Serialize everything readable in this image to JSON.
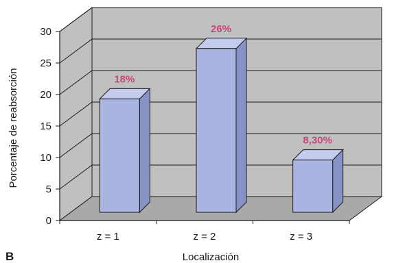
{
  "panel_label": "B",
  "colors": {
    "wall": "#c0c0c0",
    "floor": "#a9a9a9",
    "bar_front": "#a9b4e0",
    "bar_top": "#c3cbee",
    "bar_side": "#8893c5",
    "data_label": "#c8477a",
    "line": "#1a1a1a"
  },
  "chart_data": {
    "type": "bar",
    "title": "",
    "xlabel": "Localización",
    "ylabel": "Porcentaje de reabsorción",
    "categories": [
      "z = 1",
      "z = 2",
      "z = 3"
    ],
    "values": [
      18,
      26,
      8.3
    ],
    "data_labels": [
      "18%",
      "26%",
      "8,30%"
    ],
    "ylim": [
      0,
      30
    ],
    "yticks": [
      "0",
      "5",
      "10",
      "15",
      "20",
      "25",
      "30"
    ],
    "grid": true,
    "three_d": true,
    "legend": "none"
  }
}
